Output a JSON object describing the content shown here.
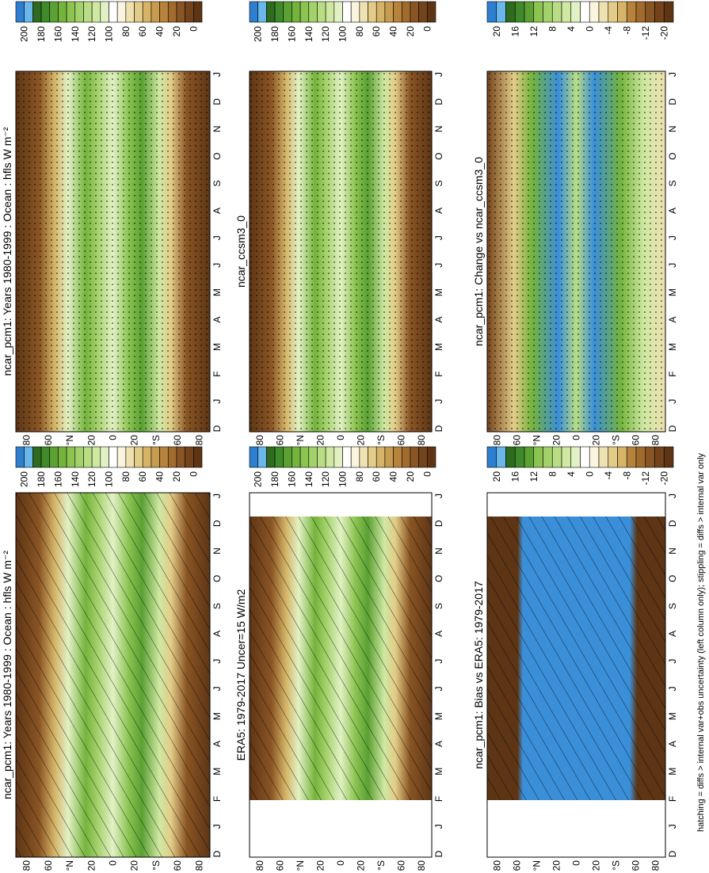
{
  "panels": [
    {
      "title": "ncar_pcm1: Years 1980-1999 : Ocean : hfls W m⁻²",
      "colorbar_labels": [
        "200",
        "180",
        "160",
        "140",
        "120",
        "100",
        "80",
        "60",
        "40",
        "20",
        "0"
      ]
    },
    {
      "title": "ncar_pcm1: Years 1980-1999 : Ocean : hfls W m⁻²",
      "colorbar_labels": [
        "200",
        "180",
        "160",
        "140",
        "120",
        "100",
        "80",
        "60",
        "40",
        "20",
        "0"
      ]
    },
    {
      "title": "ncar_ccsm3_0",
      "colorbar_labels": [
        "200",
        "180",
        "160",
        "140",
        "120",
        "100",
        "80",
        "60",
        "40",
        "20",
        "0"
      ]
    },
    {
      "title": "ERA5: 1979-2017 Uncer=15 W/m2",
      "colorbar_labels": [
        "200",
        "180",
        "160",
        "140",
        "120",
        "100",
        "80",
        "60",
        "40",
        "20",
        "0"
      ]
    },
    {
      "title": "ncar_pcm1: Change vs ncar_ccsm3_0",
      "colorbar_labels": [
        "20",
        "16",
        "12",
        "8",
        "4",
        "0",
        "-4",
        "-8",
        "-12",
        "-20"
      ]
    },
    {
      "title": "ncar_pcm1: Bias vs ERA5: 1979-2017",
      "colorbar_labels": [
        "20",
        "16",
        "12",
        "8",
        "4",
        "0",
        "-4",
        "-8",
        "-12",
        "-20"
      ]
    }
  ],
  "lat_labels": [
    "80",
    "60",
    "°N",
    "20",
    "0",
    "20",
    "°S",
    "60",
    "80"
  ],
  "month_labels": [
    "D",
    "J",
    "F",
    "M",
    "A",
    "M",
    "J",
    "J",
    "A",
    "S",
    "O",
    "N",
    "D",
    "J"
  ],
  "footnote": "hatching = diffs > internal var+obs uncertainty (left column only); stippling = diffs > internal var only"
}
